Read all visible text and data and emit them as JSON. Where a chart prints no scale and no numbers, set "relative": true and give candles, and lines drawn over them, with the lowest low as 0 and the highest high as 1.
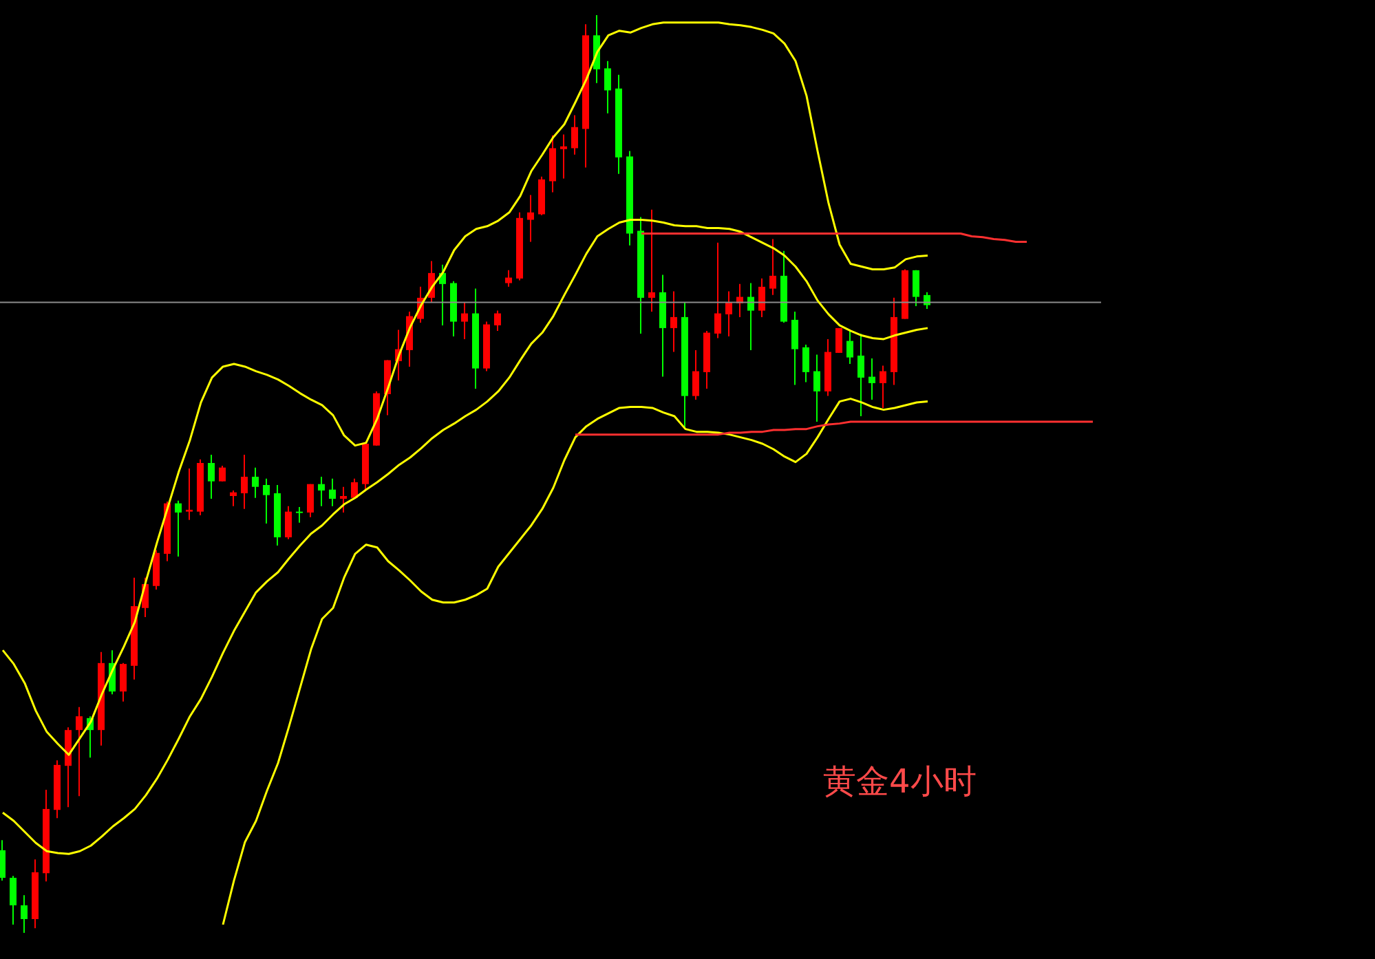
{
  "chart_data": {
    "type": "candlestick",
    "relative": true,
    "marker": "none",
    "categories": [
      null,
      null,
      null,
      null,
      null,
      null,
      null,
      null,
      null,
      null,
      null,
      null,
      null,
      null,
      null,
      null,
      null,
      null,
      null,
      null,
      null,
      null,
      null,
      null,
      null,
      null,
      null,
      null,
      null,
      null,
      null,
      null,
      null,
      null,
      null,
      null,
      null,
      null,
      null,
      null,
      null,
      null,
      null,
      null,
      null,
      null,
      null,
      null,
      null,
      null,
      null,
      null,
      null,
      null,
      null,
      null,
      null,
      null,
      null,
      null,
      null,
      null,
      null,
      null,
      null,
      null,
      null,
      null,
      null,
      null,
      null,
      null,
      null,
      null,
      null,
      null,
      null,
      null,
      null,
      null,
      null,
      null,
      null,
      null,
      null,
      null,
      null,
      null,
      null,
      null,
      null,
      null,
      null,
      null,
      null,
      null,
      null,
      null,
      null,
      null
    ],
    "ohlc": [
      [
        0.09,
        0.101,
        0.057,
        0.06
      ],
      [
        0.06,
        0.062,
        0.009,
        0.03
      ],
      [
        0.03,
        0.041,
        0,
        0.015
      ],
      [
        0.015,
        0.08,
        0.005,
        0.066
      ],
      [
        0.065,
        0.156,
        0.056,
        0.135
      ],
      [
        0.134,
        0.188,
        0.125,
        0.183
      ],
      [
        0.182,
        0.224,
        0.137,
        0.221
      ],
      [
        0.221,
        0.246,
        0.149,
        0.236
      ],
      [
        0.234,
        0.236,
        0.191,
        0.221
      ],
      [
        0.221,
        0.306,
        0.204,
        0.294
      ],
      [
        0.294,
        0.308,
        0.26,
        0.263
      ],
      [
        0.263,
        0.294,
        0.252,
        0.293
      ],
      [
        0.291,
        0.387,
        0.276,
        0.356
      ],
      [
        0.354,
        0.387,
        0.344,
        0.38
      ],
      [
        0.378,
        0.417,
        0.374,
        0.414
      ],
      [
        0.413,
        0.47,
        0.405,
        0.468
      ],
      [
        0.468,
        0.471,
        0.41,
        0.458
      ],
      [
        0.459,
        0.506,
        0.45,
        0.461
      ],
      [
        0.459,
        0.516,
        0.455,
        0.512
      ],
      [
        0.512,
        0.521,
        0.473,
        0.492
      ],
      [
        0.492,
        0.509,
        0.492,
        0.507
      ],
      [
        0.476,
        0.482,
        0.465,
        0.48
      ],
      [
        0.479,
        0.521,
        0.462,
        0.497
      ],
      [
        0.497,
        0.507,
        0.474,
        0.486
      ],
      [
        0.488,
        0.495,
        0.446,
        0.477
      ],
      [
        0.479,
        0.488,
        0.422,
        0.431
      ],
      [
        0.431,
        0.465,
        0.429,
        0.459
      ],
      [
        0.459,
        0.464,
        0.447,
        0.458
      ],
      [
        0.458,
        0.489,
        0.453,
        0.489
      ],
      [
        0.489,
        0.497,
        0.465,
        0.482
      ],
      [
        0.483,
        0.495,
        0.465,
        0.473
      ],
      [
        0.473,
        0.486,
        0.458,
        0.476
      ],
      [
        0.474,
        0.495,
        0.474,
        0.491
      ],
      [
        0.489,
        0.533,
        0.483,
        0.533
      ],
      [
        0.531,
        0.59,
        0.531,
        0.588
      ],
      [
        0.587,
        0.624,
        0.564,
        0.624
      ],
      [
        0.623,
        0.657,
        0.602,
        0.636
      ],
      [
        0.635,
        0.677,
        0.617,
        0.672
      ],
      [
        0.669,
        0.704,
        0.665,
        0.692
      ],
      [
        0.692,
        0.732,
        0.687,
        0.719
      ],
      [
        0.719,
        0.728,
        0.662,
        0.707
      ],
      [
        0.708,
        0.71,
        0.65,
        0.666
      ],
      [
        0.666,
        0.687,
        0.647,
        0.675
      ],
      [
        0.675,
        0.702,
        0.593,
        0.615
      ],
      [
        0.615,
        0.666,
        0.612,
        0.663
      ],
      [
        0.662,
        0.678,
        0.656,
        0.675
      ],
      [
        0.708,
        0.722,
        0.704,
        0.714
      ],
      [
        0.713,
        0.785,
        0.711,
        0.779
      ],
      [
        0.777,
        0.804,
        0.753,
        0.785
      ],
      [
        0.783,
        0.824,
        0.782,
        0.821
      ],
      [
        0.819,
        0.869,
        0.807,
        0.855
      ],
      [
        0.854,
        0.87,
        0.822,
        0.857
      ],
      [
        0.855,
        0.891,
        0.848,
        0.878
      ],
      [
        0.876,
        0.99,
        0.834,
        0.978
      ],
      [
        0.978,
        1,
        0.926,
        0.941
      ],
      [
        0.942,
        0.95,
        0.893,
        0.918
      ],
      [
        0.92,
        0.935,
        0.827,
        0.845
      ],
      [
        0.846,
        0.852,
        0.749,
        0.762
      ],
      [
        0.765,
        0.78,
        0.653,
        0.692
      ],
      [
        0.692,
        0.788,
        0.677,
        0.698
      ],
      [
        0.698,
        0.717,
        0.606,
        0.659
      ],
      [
        0.659,
        0.699,
        0.633,
        0.671
      ],
      [
        0.671,
        0.687,
        0.549,
        0.585
      ],
      [
        0.585,
        0.635,
        0.581,
        0.612
      ],
      [
        0.611,
        0.656,
        0.593,
        0.654
      ],
      [
        0.653,
        0.752,
        0.648,
        0.675
      ],
      [
        0.674,
        0.699,
        0.65,
        0.687
      ],
      [
        0.686,
        0.707,
        0.671,
        0.693
      ],
      [
        0.693,
        0.708,
        0.635,
        0.678
      ],
      [
        0.678,
        0.713,
        0.671,
        0.704
      ],
      [
        0.702,
        0.756,
        0.695,
        0.716
      ],
      [
        0.716,
        0.743,
        0.665,
        0.666
      ],
      [
        0.668,
        0.677,
        0.597,
        0.636
      ],
      [
        0.638,
        0.641,
        0.6,
        0.611
      ],
      [
        0.612,
        0.63,
        0.557,
        0.59
      ],
      [
        0.59,
        0.647,
        0.585,
        0.633
      ],
      [
        0.632,
        0.659,
        0.632,
        0.659
      ],
      [
        0.645,
        0.657,
        0.62,
        0.627
      ],
      [
        0.629,
        0.653,
        0.563,
        0.605
      ],
      [
        0.606,
        0.626,
        0.581,
        0.599
      ],
      [
        0.599,
        0.618,
        0.572,
        0.612
      ],
      [
        0.611,
        0.692,
        0.597,
        0.671
      ],
      [
        0.669,
        0.723,
        0.669,
        0.722
      ],
      [
        0.722,
        0.722,
        0.683,
        0.693
      ],
      [
        0.695,
        0.698,
        0.68,
        0.684
      ],
      null,
      null,
      null,
      null,
      null,
      null,
      null,
      null,
      null,
      null,
      null,
      null,
      null,
      null,
      null
    ],
    "colors": [
      "#00ff00",
      "#00ff00",
      "#00ff00",
      "#ff0000",
      "#ff0000",
      "#ff0000",
      "#ff0000",
      "#ff0000",
      "#00ff00",
      "#ff0000",
      "#00ff00",
      "#ff0000",
      "#ff0000",
      "#ff0000",
      "#ff0000",
      "#ff0000",
      "#00ff00",
      "#ff0000",
      "#ff0000",
      "#00ff00",
      "#ff0000",
      "#ff0000",
      "#ff0000",
      "#00ff00",
      "#00ff00",
      "#00ff00",
      "#ff0000",
      "#00ff00",
      "#ff0000",
      "#00ff00",
      "#00ff00",
      "#ff0000",
      "#ff0000",
      "#ff0000",
      "#ff0000",
      "#ff0000",
      "#ff0000",
      "#ff0000",
      "#ff0000",
      "#ff0000",
      "#00ff00",
      "#00ff00",
      "#ff0000",
      "#00ff00",
      "#ff0000",
      "#ff0000",
      "#ff0000",
      "#ff0000",
      "#ff0000",
      "#ff0000",
      "#ff0000",
      "#ff0000",
      "#ff0000",
      "#ff0000",
      "#00ff00",
      "#00ff00",
      "#00ff00",
      "#00ff00",
      "#00ff00",
      "#ff0000",
      "#00ff00",
      "#ff0000",
      "#00ff00",
      "#ff0000",
      "#ff0000",
      "#ff0000",
      "#ff0000",
      "#ff0000",
      "#00ff00",
      "#ff0000",
      "#ff0000",
      "#00ff00",
      "#00ff00",
      "#00ff00",
      "#00ff00",
      "#ff0000",
      "#ff0000",
      "#00ff00",
      "#00ff00",
      "#00ff00",
      "#ff0000",
      "#ff0000",
      "#ff0000",
      "#00ff00",
      "#00ff00",
      null,
      null,
      null,
      null,
      null,
      null,
      null,
      null,
      null,
      null,
      null,
      null,
      null,
      null,
      null
    ],
    "series": [
      {
        "type": "line",
        "color": "#ffff00",
        "values": [
          0.308,
          0.293,
          0.272,
          0.242,
          0.219,
          0.206,
          0.194,
          0.212,
          0.23,
          0.26,
          0.287,
          0.312,
          0.339,
          0.383,
          0.425,
          0.464,
          0.503,
          0.537,
          0.578,
          0.605,
          0.617,
          0.62,
          0.617,
          0.612,
          0.608,
          0.603,
          0.596,
          0.588,
          0.581,
          0.575,
          0.564,
          0.542,
          0.531,
          0.534,
          0.56,
          0.594,
          0.63,
          0.66,
          0.684,
          0.704,
          0.72,
          0.744,
          0.759,
          0.767,
          0.77,
          0.776,
          0.785,
          0.803,
          0.83,
          0.848,
          0.867,
          0.881,
          0.905,
          0.93,
          0.96,
          0.978,
          0.983,
          0.981,
          0.986,
          0.99,
          0.992,
          0.992,
          0.992,
          0.992,
          0.992,
          0.992,
          0.99,
          0.989,
          0.987,
          0.984,
          0.98,
          0.969,
          0.95,
          0.912,
          0.852,
          0.795,
          0.75,
          0.729,
          0.726,
          0.723,
          0.723,
          0.725,
          0.734,
          0.737,
          0.738,
          null,
          null,
          null,
          null,
          null,
          null,
          null,
          null,
          null,
          null,
          null,
          null,
          null,
          null,
          null
        ]
      },
      {
        "type": "line",
        "color": "#ffff00",
        "values": [
          0.131,
          0.122,
          0.11,
          0.098,
          0.089,
          0.087,
          0.086,
          0.089,
          0.095,
          0.105,
          0.116,
          0.125,
          0.135,
          0.15,
          0.168,
          0.189,
          0.212,
          0.236,
          0.255,
          0.279,
          0.305,
          0.329,
          0.35,
          0.371,
          0.383,
          0.393,
          0.408,
          0.422,
          0.435,
          0.444,
          0.456,
          0.467,
          0.474,
          0.483,
          0.491,
          0.5,
          0.51,
          0.518,
          0.528,
          0.539,
          0.548,
          0.555,
          0.563,
          0.57,
          0.579,
          0.59,
          0.605,
          0.624,
          0.642,
          0.654,
          0.672,
          0.695,
          0.717,
          0.74,
          0.759,
          0.767,
          0.774,
          0.777,
          0.777,
          0.776,
          0.774,
          0.771,
          0.77,
          0.77,
          0.768,
          0.768,
          0.767,
          0.764,
          0.758,
          0.752,
          0.746,
          0.738,
          0.726,
          0.71,
          0.689,
          0.674,
          0.662,
          0.656,
          0.651,
          0.648,
          0.647,
          0.651,
          0.654,
          0.657,
          0.659,
          null,
          null,
          null,
          null,
          null,
          null,
          null,
          null,
          null,
          null,
          null,
          null,
          null,
          null,
          null
        ]
      },
      {
        "type": "line",
        "color": "#ffff00",
        "values": [
          null,
          null,
          null,
          null,
          null,
          null,
          null,
          null,
          null,
          null,
          null,
          null,
          null,
          null,
          null,
          null,
          null,
          null,
          null,
          null,
          0.009,
          0.057,
          0.099,
          0.122,
          0.155,
          0.185,
          0.225,
          0.267,
          0.309,
          0.342,
          0.354,
          0.387,
          0.413,
          0.423,
          0.42,
          0.405,
          0.395,
          0.384,
          0.372,
          0.363,
          0.36,
          0.36,
          0.363,
          0.368,
          0.375,
          0.399,
          0.414,
          0.429,
          0.444,
          0.462,
          0.485,
          0.515,
          0.54,
          0.552,
          0.56,
          0.566,
          0.572,
          0.573,
          0.573,
          0.572,
          0.567,
          0.563,
          0.549,
          0.546,
          0.546,
          0.545,
          0.543,
          0.54,
          0.537,
          0.533,
          0.527,
          0.519,
          0.513,
          0.522,
          0.54,
          0.56,
          0.579,
          0.582,
          0.578,
          0.573,
          0.57,
          0.572,
          0.575,
          0.578,
          0.579,
          null,
          null,
          null,
          null,
          null,
          null,
          null,
          null,
          null,
          null,
          null,
          null,
          null,
          null,
          null
        ]
      },
      {
        "type": "line",
        "color": "#ff3030",
        "values": [
          null,
          null,
          null,
          null,
          null,
          null,
          null,
          null,
          null,
          null,
          null,
          null,
          null,
          null,
          null,
          null,
          null,
          null,
          null,
          null,
          null,
          null,
          null,
          null,
          null,
          null,
          null,
          null,
          null,
          null,
          null,
          null,
          null,
          null,
          null,
          null,
          null,
          null,
          null,
          null,
          null,
          null,
          null,
          null,
          null,
          null,
          null,
          null,
          null,
          null,
          null,
          null,
          null,
          null,
          null,
          null,
          null,
          null,
          0.762,
          0.762,
          0.762,
          0.762,
          0.762,
          0.762,
          0.762,
          0.762,
          0.762,
          0.762,
          0.762,
          0.762,
          0.762,
          0.762,
          0.762,
          0.762,
          0.762,
          0.762,
          0.762,
          0.762,
          0.762,
          0.762,
          0.762,
          0.762,
          0.762,
          0.762,
          0.762,
          0.762,
          0.762,
          0.762,
          0.759,
          0.758,
          0.756,
          0.755,
          0.753,
          0.753,
          null,
          null,
          null,
          null,
          null,
          null
        ]
      },
      {
        "type": "line",
        "color": "#ff3030",
        "values": [
          null,
          null,
          null,
          null,
          null,
          null,
          null,
          null,
          null,
          null,
          null,
          null,
          null,
          null,
          null,
          null,
          null,
          null,
          null,
          null,
          null,
          null,
          null,
          null,
          null,
          null,
          null,
          null,
          null,
          null,
          null,
          null,
          null,
          null,
          null,
          null,
          null,
          null,
          null,
          null,
          null,
          null,
          null,
          null,
          null,
          null,
          null,
          null,
          null,
          null,
          null,
          null,
          0.543,
          0.543,
          0.543,
          0.543,
          0.543,
          0.543,
          0.543,
          0.543,
          0.543,
          0.543,
          0.543,
          0.543,
          0.543,
          0.543,
          0.545,
          0.545,
          0.546,
          0.546,
          0.548,
          0.548,
          0.549,
          0.549,
          0.552,
          0.554,
          0.555,
          0.557,
          0.557,
          0.557,
          0.557,
          0.557,
          0.557,
          0.557,
          0.557,
          0.557,
          0.557,
          0.557,
          0.557,
          0.557,
          0.557,
          0.557,
          0.557,
          0.557,
          0.557,
          0.557,
          0.557,
          0.557,
          0.557,
          0.557
        ]
      }
    ],
    "ref_lines": [
      {
        "axis": "y",
        "value": 0.687,
        "color": "#8c8c8c"
      }
    ],
    "annotations": [
      "黄金4小时"
    ]
  }
}
